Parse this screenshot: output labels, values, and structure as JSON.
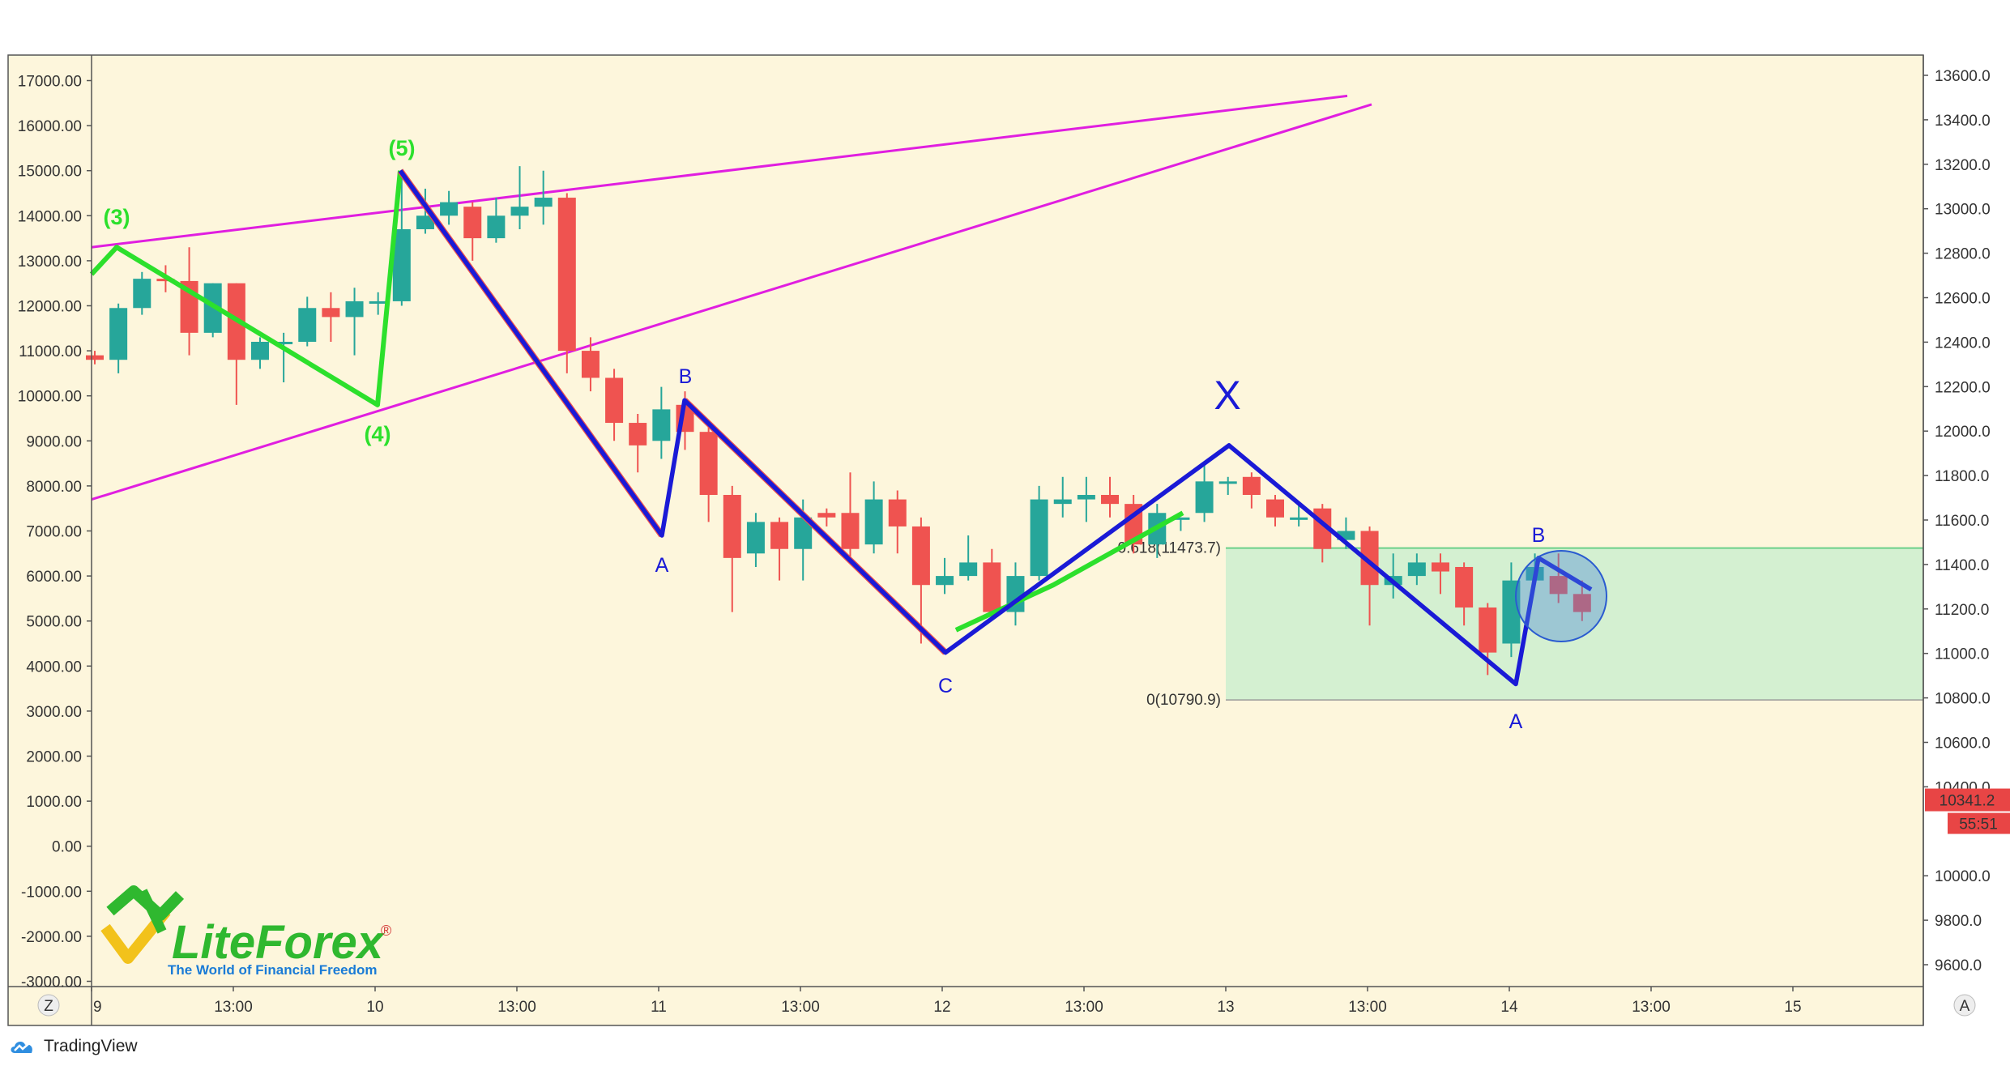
{
  "colors": {
    "background": "#fdf6dc",
    "frame": "#555555",
    "bull": "#26a69a",
    "bear": "#ef5350",
    "impulse": "#2ce02c",
    "correction": "#1a1ad6",
    "trendline": "#e01ee0",
    "zone_fill": "#cdeecf",
    "zone_line": "#6bcf8a",
    "price_tag": "#e84545",
    "logo_green": "#2fb82f",
    "logo_yellow": "#f2c21b",
    "logo_sub": "#1a7bd6"
  },
  "chart_data": {
    "type": "candlestick",
    "left_axis": {
      "ticks": [
        "17000.00",
        "16000.00",
        "15000.00",
        "14000.00",
        "13000.00",
        "12000.00",
        "11000.00",
        "10000.00",
        "9000.00",
        "8000.00",
        "7000.00",
        "6000.00",
        "5000.00",
        "4000.00",
        "3000.00",
        "2000.00",
        "1000.00",
        "0.00",
        "-1000.00",
        "-2000.00",
        "-3000.00"
      ],
      "range": [
        -3000,
        17000
      ]
    },
    "right_axis": {
      "ticks": [
        "13600.0",
        "13400.0",
        "13200.0",
        "13000.0",
        "12800.0",
        "12600.0",
        "12400.0",
        "12200.0",
        "12000.0",
        "11800.0",
        "11600.0",
        "11400.0",
        "11200.0",
        "11000.0",
        "10800.0",
        "10600.0",
        "10400.0",
        "10000.0",
        "9800.0",
        "9600.0"
      ],
      "range": [
        9400,
        13600
      ]
    },
    "x_axis": {
      "ticks": [
        "9",
        "13:00",
        "10",
        "13:00",
        "11",
        "13:00",
        "12",
        "13:00",
        "13",
        "13:00",
        "14",
        "13:00",
        "15"
      ],
      "corner_left": "Z",
      "corner_right": "A"
    },
    "candles": [
      [
        10900,
        10800,
        11000,
        10700
      ],
      [
        10800,
        11950,
        12050,
        10500
      ],
      [
        11950,
        12600,
        12750,
        11800
      ],
      [
        12600,
        12550,
        12900,
        12300
      ],
      [
        12550,
        11400,
        13300,
        10900
      ],
      [
        11400,
        12500,
        12500,
        11300
      ],
      [
        12500,
        10800,
        12500,
        9800
      ],
      [
        10800,
        11200,
        11300,
        10600
      ],
      [
        11200,
        11200,
        11400,
        10300
      ],
      [
        11200,
        11950,
        12200,
        11100
      ],
      [
        11950,
        11750,
        12300,
        11200
      ],
      [
        11750,
        12100,
        12400,
        10900
      ],
      [
        12100,
        12100,
        12300,
        11800
      ],
      [
        12100,
        13700,
        15000,
        12000
      ],
      [
        13700,
        14000,
        14600,
        13600
      ],
      [
        14000,
        14300,
        14550,
        13800
      ],
      [
        14200,
        13500,
        14300,
        13000
      ],
      [
        13500,
        14000,
        14400,
        13400
      ],
      [
        14000,
        14200,
        15100,
        13700
      ],
      [
        14200,
        14400,
        15000,
        13800
      ],
      [
        14400,
        11000,
        14500,
        10500
      ],
      [
        11000,
        10400,
        11300,
        10100
      ],
      [
        10400,
        9400,
        10600,
        9000
      ],
      [
        9400,
        8900,
        9600,
        8300
      ],
      [
        9000,
        9700,
        10200,
        8600
      ],
      [
        9800,
        9200,
        10100,
        8800
      ],
      [
        9200,
        7800,
        9400,
        7200
      ],
      [
        7800,
        6400,
        8000,
        5200
      ],
      [
        6500,
        7200,
        7400,
        6200
      ],
      [
        7200,
        6600,
        7300,
        5900
      ],
      [
        6600,
        7300,
        7700,
        5900
      ],
      [
        7400,
        7300,
        7500,
        7100
      ],
      [
        7400,
        6600,
        8300,
        6400
      ],
      [
        6700,
        7700,
        8100,
        6500
      ],
      [
        7700,
        7100,
        7900,
        6500
      ],
      [
        7100,
        5800,
        7300,
        4500
      ],
      [
        5800,
        6000,
        6400,
        5600
      ],
      [
        6000,
        6300,
        6900,
        5900
      ],
      [
        6300,
        5200,
        6600,
        5100
      ],
      [
        5200,
        6000,
        6300,
        4900
      ],
      [
        6000,
        7700,
        8000,
        5900
      ],
      [
        7600,
        7700,
        8200,
        7300
      ],
      [
        7700,
        7800,
        8200,
        7200
      ],
      [
        7800,
        7600,
        8200,
        7300
      ],
      [
        7600,
        6700,
        7800,
        6500
      ],
      [
        6700,
        7400,
        7600,
        6400
      ],
      [
        7300,
        7300,
        7300,
        7000
      ],
      [
        7400,
        8100,
        8500,
        7200
      ],
      [
        8100,
        8100,
        8200,
        7800
      ],
      [
        8200,
        7800,
        8300,
        7500
      ],
      [
        7700,
        7300,
        7800,
        7100
      ],
      [
        7300,
        7300,
        7600,
        7100
      ],
      [
        7500,
        6600,
        7600,
        6300
      ],
      [
        6800,
        7000,
        7300,
        6600
      ],
      [
        7000,
        5800,
        7100,
        4900
      ],
      [
        5800,
        6000,
        6500,
        5500
      ],
      [
        6000,
        6300,
        6500,
        5800
      ],
      [
        6300,
        6100,
        6500,
        5600
      ],
      [
        6200,
        5300,
        6300,
        4900
      ],
      [
        5300,
        4300,
        5400,
        3800
      ],
      [
        4500,
        5900,
        6300,
        4200
      ],
      [
        5900,
        6200,
        6500,
        5800
      ],
      [
        6000,
        5600,
        6500,
        5400
      ],
      [
        5600,
        5200,
        5900,
        5000
      ]
    ],
    "annotations": [
      "(3)",
      "(4)",
      "(5)",
      "A",
      "B",
      "C",
      "X",
      "A",
      "B"
    ],
    "fib_levels": [
      "0.618(11473.7)",
      "0(10790.9)"
    ],
    "price_tag": "10341.2",
    "countdown": "55:51"
  },
  "logo": {
    "name": "LiteForex",
    "tagline": "The World of Financial Freedom",
    "mark": "®"
  },
  "footer": {
    "brand": "TradingView"
  }
}
